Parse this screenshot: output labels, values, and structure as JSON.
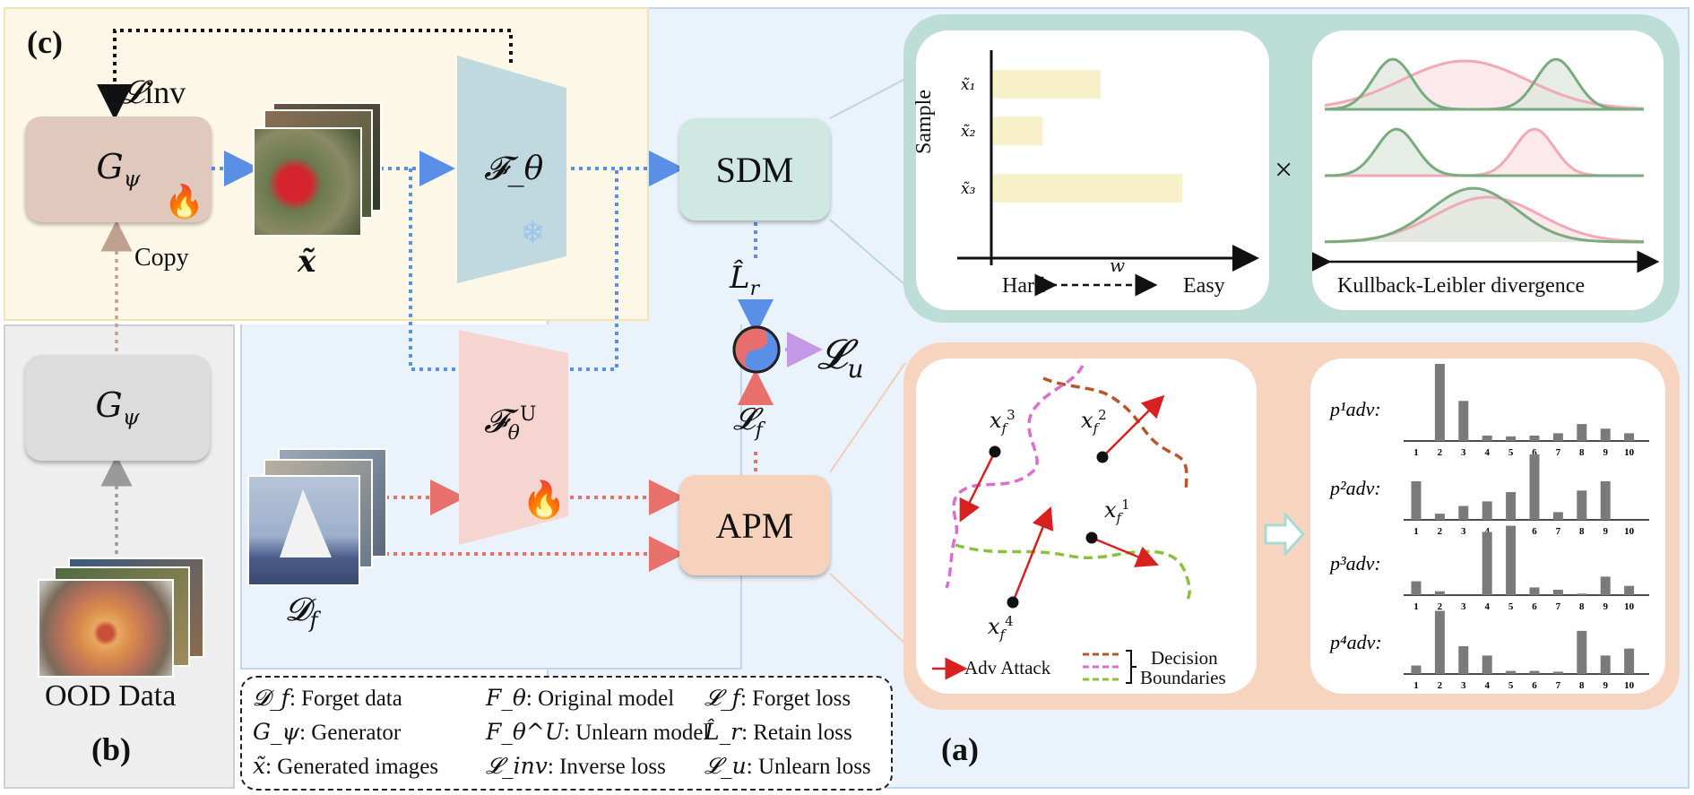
{
  "panel_labels": {
    "c": "(c)",
    "b": "(b)",
    "a": "(a)"
  },
  "modules": {
    "generator_top": "G_ψ",
    "generator_bottom": "G_ψ",
    "original_model": "𝓕_θ",
    "unlearn_model": "𝓕_θ^U",
    "sdm": "SDM",
    "apm": "APM"
  },
  "labels": {
    "copy": "Copy",
    "generated_images": "x̃",
    "forget_data": "𝓓_f",
    "ood_data": "OOD Data",
    "inverse_loss": "𝓛_inv",
    "retain_loss": "L̂_r",
    "forget_loss": "𝓛_f",
    "unlearn_loss": "𝓛_u",
    "times": "×"
  },
  "sdm_chart": {
    "ylabel": "Sample",
    "xlabel": "w",
    "hard": "Hard",
    "easy": "Easy",
    "rows": [
      "x̃₁",
      "x̃₂",
      "x̃₃"
    ],
    "weights": [
      0.5,
      0.23,
      0.88
    ],
    "kl_label": "Kullback-Leibler divergence"
  },
  "apm": {
    "points": [
      "x_f^3",
      "x_f^2",
      "x_f^1",
      "x_f^4"
    ],
    "adv_attack": "Adv Attack",
    "decision": "Decision",
    "boundaries": "Boundaries"
  },
  "adv_dist": {
    "labels": [
      "p¹adv:",
      "p²adv:",
      "p³adv:",
      "p⁴adv:"
    ],
    "ticks": [
      "1",
      "2",
      "3",
      "4",
      "5",
      "6",
      "7",
      "8",
      "9",
      "10"
    ],
    "values": [
      [
        0,
        1.0,
        0.52,
        0.07,
        0.06,
        0.07,
        0.1,
        0.22,
        0.16,
        0.1
      ],
      [
        0.5,
        0.08,
        0.18,
        0.24,
        0.36,
        0.85,
        0.1,
        0.38,
        0.5,
        0
      ],
      [
        0.18,
        0.05,
        0,
        0.82,
        0.9,
        0.1,
        0.07,
        0.02,
        0.24,
        0.12
      ],
      [
        0.11,
        0.82,
        0.36,
        0.24,
        0.04,
        0.04,
        0.03,
        0.56,
        0.24,
        0.33
      ]
    ]
  },
  "legend": [
    {
      "sym": "𝓓_f",
      "text": ": Forget data"
    },
    {
      "sym": "G_ψ",
      "text": ": Generator"
    },
    {
      "sym": "x̃",
      "text": ": Generated images"
    },
    {
      "sym": "F_θ",
      "text": ": Original model"
    },
    {
      "sym": "F_θ^U",
      "text": ": Unlearn model"
    },
    {
      "sym": "𝓛_inv",
      "text": ": Inverse loss"
    },
    {
      "sym": "𝓛_f",
      "text": ": Forget loss"
    },
    {
      "sym": "L̂_r",
      "text": ": Retain loss"
    },
    {
      "sym": "𝓛_u",
      "text": ": Unlearn loss"
    }
  ],
  "colors": {
    "panel_c_bg": "#fdf7e8",
    "panel_b_bg": "#eeeeee",
    "panel_main_bg": "#eaf2fb",
    "sdm_fill": "#cfe8e1",
    "apm_fill": "#f6d2bd",
    "generator_fill": "#e0c8bd",
    "gray_generator": "#dcdcdc",
    "arrow_blue": "#5a8fe8",
    "arrow_red": "#e8716c",
    "arrow_purple": "#c49ae8",
    "bar_cream": "#f7f0c9",
    "green_curve": "#7aab7f",
    "pink_curve": "#f0a9b5"
  }
}
